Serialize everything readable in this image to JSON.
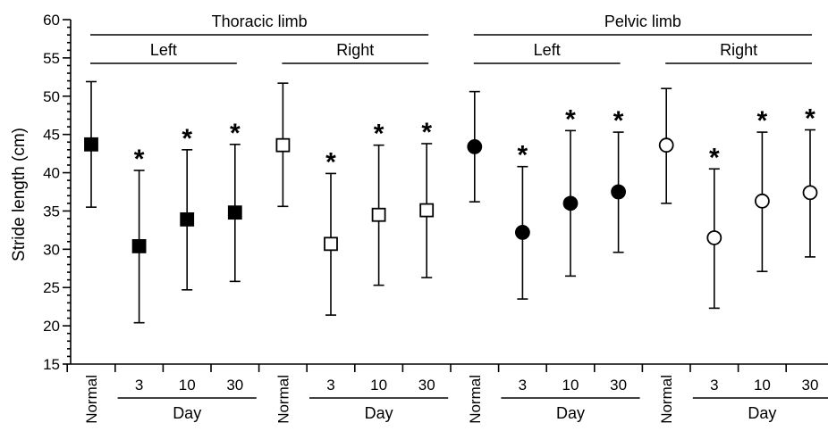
{
  "chart_data": {
    "type": "scatter",
    "ylabel": "Stride length (cm)",
    "ylim": [
      15,
      60
    ],
    "yticks": [
      15,
      20,
      25,
      30,
      35,
      40,
      45,
      50,
      55,
      60
    ],
    "grid": false,
    "significance_marker": "*",
    "top_groups": [
      {
        "label": "Thoracic limb",
        "points": [
          0,
          7
        ]
      },
      {
        "label": "Pelvic limb",
        "points": [
          8,
          15
        ]
      }
    ],
    "side_groups": [
      {
        "label": "Left",
        "points": [
          0,
          3
        ]
      },
      {
        "label": "Right",
        "points": [
          4,
          7
        ]
      },
      {
        "label": "Left",
        "points": [
          8,
          11
        ]
      },
      {
        "label": "Right",
        "points": [
          12,
          15
        ]
      }
    ],
    "day_groups": [
      {
        "label": "Day",
        "points": [
          1,
          3
        ]
      },
      {
        "label": "Day",
        "points": [
          5,
          7
        ]
      },
      {
        "label": "Day",
        "points": [
          9,
          11
        ]
      },
      {
        "label": "Day",
        "points": [
          13,
          15
        ]
      }
    ],
    "points": [
      {
        "x": "Normal",
        "mean": 43.7,
        "low": 35.5,
        "high": 51.9,
        "marker": "square-filled",
        "significant": false
      },
      {
        "x": "3",
        "mean": 30.4,
        "low": 20.4,
        "high": 40.3,
        "marker": "square-filled",
        "significant": true
      },
      {
        "x": "10",
        "mean": 33.9,
        "low": 24.7,
        "high": 43.0,
        "marker": "square-filled",
        "significant": true
      },
      {
        "x": "30",
        "mean": 34.8,
        "low": 25.8,
        "high": 43.7,
        "marker": "square-filled",
        "significant": true
      },
      {
        "x": "Normal",
        "mean": 43.6,
        "low": 35.6,
        "high": 51.7,
        "marker": "square-open",
        "significant": false
      },
      {
        "x": "3",
        "mean": 30.7,
        "low": 21.4,
        "high": 39.9,
        "marker": "square-open",
        "significant": true
      },
      {
        "x": "10",
        "mean": 34.5,
        "low": 25.3,
        "high": 43.6,
        "marker": "square-open",
        "significant": true
      },
      {
        "x": "30",
        "mean": 35.1,
        "low": 26.3,
        "high": 43.8,
        "marker": "square-open",
        "significant": true
      },
      {
        "x": "Normal",
        "mean": 43.4,
        "low": 36.2,
        "high": 50.6,
        "marker": "circle-filled",
        "significant": false
      },
      {
        "x": "3",
        "mean": 32.2,
        "low": 23.5,
        "high": 40.8,
        "marker": "circle-filled",
        "significant": true
      },
      {
        "x": "10",
        "mean": 36.0,
        "low": 26.5,
        "high": 45.5,
        "marker": "circle-filled",
        "significant": true
      },
      {
        "x": "30",
        "mean": 37.5,
        "low": 29.6,
        "high": 45.3,
        "marker": "circle-filled",
        "significant": true
      },
      {
        "x": "Normal",
        "mean": 43.6,
        "low": 36.0,
        "high": 51.0,
        "marker": "circle-open",
        "significant": false
      },
      {
        "x": "3",
        "mean": 31.5,
        "low": 22.3,
        "high": 40.5,
        "marker": "circle-open",
        "significant": true
      },
      {
        "x": "10",
        "mean": 36.3,
        "low": 27.1,
        "high": 45.3,
        "marker": "circle-open",
        "significant": true
      },
      {
        "x": "30",
        "mean": 37.4,
        "low": 29.0,
        "high": 45.6,
        "marker": "circle-open",
        "significant": true
      }
    ]
  }
}
